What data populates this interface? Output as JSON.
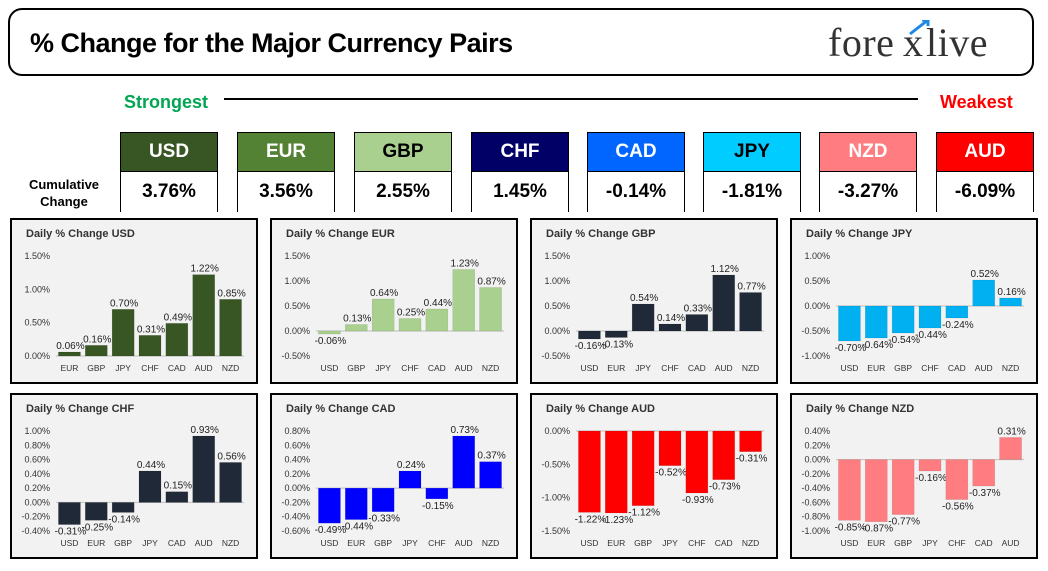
{
  "header": {
    "title": "% Change for the Major Currency Pairs",
    "logo": "forexlive"
  },
  "scale": {
    "strongest": "Strongest",
    "weakest": "Weakest"
  },
  "cumulative_label_1": "Cumulative",
  "cumulative_label_2": "Change",
  "currencies": [
    {
      "code": "USD",
      "value": "3.76%",
      "color": "#375623",
      "text_color": "#ffffff"
    },
    {
      "code": "EUR",
      "value": "3.56%",
      "color": "#548235",
      "text_color": "#ffffff"
    },
    {
      "code": "GBP",
      "value": "2.55%",
      "color": "#a9d08e",
      "text_color": "#000000"
    },
    {
      "code": "CHF",
      "value": "1.45%",
      "color": "#000066",
      "text_color": "#ffffff"
    },
    {
      "code": "CAD",
      "value": "-0.14%",
      "color": "#0066ff",
      "text_color": "#ffffff"
    },
    {
      "code": "JPY",
      "value": "-1.81%",
      "color": "#00ccff",
      "text_color": "#000000"
    },
    {
      "code": "NZD",
      "value": "-3.27%",
      "color": "#ff7c80",
      "text_color": "#ffffff"
    },
    {
      "code": "AUD",
      "value": "-6.09%",
      "color": "#ff0000",
      "text_color": "#ffffff"
    }
  ],
  "chart_data": [
    {
      "type": "bar",
      "title": "Daily % Change USD",
      "color": "#375623",
      "categories": [
        "EUR",
        "GBP",
        "JPY",
        "CHF",
        "CAD",
        "AUD",
        "NZD"
      ],
      "values": [
        0.06,
        0.16,
        0.7,
        0.31,
        0.49,
        1.22,
        0.85
      ],
      "labels": [
        "0.06%",
        "0.16%",
        "0.70%",
        "0.31%",
        "0.49%",
        "1.22%",
        "0.85%"
      ],
      "ticks": [
        "1.50%",
        "1.00%",
        "0.50%",
        "0.00%"
      ],
      "ylim": [
        0,
        1.5
      ],
      "tick_step": 0.5
    },
    {
      "type": "bar",
      "title": "Daily % Change EUR",
      "color": "#a9d08e",
      "categories": [
        "USD",
        "GBP",
        "JPY",
        "CHF",
        "CAD",
        "AUD",
        "NZD"
      ],
      "values": [
        -0.06,
        0.13,
        0.64,
        0.25,
        0.44,
        1.23,
        0.87
      ],
      "labels": [
        "-0.06%",
        "0.13%",
        "0.64%",
        "0.25%",
        "0.44%",
        "1.23%",
        "0.87%"
      ],
      "ticks": [
        "1.50%",
        "1.00%",
        "0.50%",
        "0.00%",
        "-0.50%"
      ],
      "ylim": [
        -0.5,
        1.5
      ],
      "tick_step": 0.5
    },
    {
      "type": "bar",
      "title": "Daily % Change GBP",
      "color": "#1f2937",
      "categories": [
        "USD",
        "EUR",
        "JPY",
        "CHF",
        "CAD",
        "AUD",
        "NZD"
      ],
      "values": [
        -0.16,
        -0.13,
        0.54,
        0.14,
        0.33,
        1.12,
        0.77
      ],
      "labels": [
        "-0.16%",
        "-0.13%",
        "0.54%",
        "0.14%",
        "0.33%",
        "1.12%",
        "0.77%"
      ],
      "ticks": [
        "1.50%",
        "1.00%",
        "0.50%",
        "0.00%",
        "-0.50%"
      ],
      "ylim": [
        -0.5,
        1.5
      ],
      "tick_step": 0.5
    },
    {
      "type": "bar",
      "title": "Daily % Change JPY",
      "color": "#00b0f0",
      "categories": [
        "USD",
        "EUR",
        "GBP",
        "CHF",
        "CAD",
        "AUD",
        "NZD"
      ],
      "values": [
        -0.7,
        -0.64,
        -0.54,
        -0.44,
        -0.24,
        0.52,
        0.16
      ],
      "labels": [
        "-0.70%",
        "-0.64%",
        "-0.54%",
        "-0.44%",
        "-0.24%",
        "0.52%",
        "0.16%"
      ],
      "ticks": [
        "1.00%",
        "0.50%",
        "0.00%",
        "-0.50%",
        "-1.00%"
      ],
      "ylim": [
        -1.0,
        1.0
      ],
      "tick_step": 0.5
    },
    {
      "type": "bar",
      "title": "Daily % Change CHF",
      "color": "#1f2937",
      "categories": [
        "USD",
        "EUR",
        "GBP",
        "JPY",
        "CAD",
        "AUD",
        "NZD"
      ],
      "values": [
        -0.31,
        -0.25,
        -0.14,
        0.44,
        0.15,
        0.93,
        0.56
      ],
      "labels": [
        "-0.31%",
        "-0.25%",
        "-0.14%",
        "0.44%",
        "0.15%",
        "0.93%",
        "0.56%"
      ],
      "ticks": [
        "1.00%",
        "0.80%",
        "0.60%",
        "0.40%",
        "0.20%",
        "0.00%",
        "-0.20%",
        "-0.40%"
      ],
      "ylim": [
        -0.4,
        1.0
      ],
      "tick_step": 0.2
    },
    {
      "type": "bar",
      "title": "Daily % Change CAD",
      "color": "#0000ff",
      "categories": [
        "USD",
        "EUR",
        "GBP",
        "JPY",
        "CHF",
        "AUD",
        "NZD"
      ],
      "values": [
        -0.49,
        -0.44,
        -0.33,
        0.24,
        -0.15,
        0.73,
        0.37
      ],
      "labels": [
        "-0.49%",
        "-0.44%",
        "-0.33%",
        "0.24%",
        "-0.15%",
        "0.73%",
        "0.37%"
      ],
      "ticks": [
        "0.80%",
        "0.60%",
        "0.40%",
        "0.20%",
        "0.00%",
        "-0.20%",
        "-0.40%",
        "-0.60%"
      ],
      "ylim": [
        -0.6,
        0.8
      ],
      "tick_step": 0.2
    },
    {
      "type": "bar",
      "title": "Daily % Change AUD",
      "color": "#ff0000",
      "categories": [
        "USD",
        "EUR",
        "GBP",
        "JPY",
        "CHF",
        "CAD",
        "NZD"
      ],
      "values": [
        -1.22,
        -1.23,
        -1.12,
        -0.52,
        -0.93,
        -0.73,
        -0.31
      ],
      "labels": [
        "-1.22%",
        "-1.23%",
        "-1.12%",
        "-0.52%",
        "-0.93%",
        "-0.73%",
        "-0.31%"
      ],
      "ticks": [
        "0.00%",
        "-0.50%",
        "-1.00%",
        "-1.50%"
      ],
      "ylim": [
        -1.5,
        0.0
      ],
      "tick_step": 0.5
    },
    {
      "type": "bar",
      "title": "Daily % Change NZD",
      "color": "#ff7c80",
      "categories": [
        "USD",
        "EUR",
        "GBP",
        "JPY",
        "CHF",
        "CAD",
        "AUD"
      ],
      "values": [
        -0.85,
        -0.87,
        -0.77,
        -0.16,
        -0.56,
        -0.37,
        0.31
      ],
      "labels": [
        "-0.85%",
        "-0.87%",
        "-0.77%",
        "-0.16%",
        "-0.56%",
        "-0.37%",
        "0.31%"
      ],
      "ticks": [
        "0.40%",
        "0.20%",
        "0.00%",
        "-0.20%",
        "-0.40%",
        "-0.60%",
        "-0.80%",
        "-1.00%"
      ],
      "ylim": [
        -1.0,
        0.4
      ],
      "tick_step": 0.2
    }
  ]
}
